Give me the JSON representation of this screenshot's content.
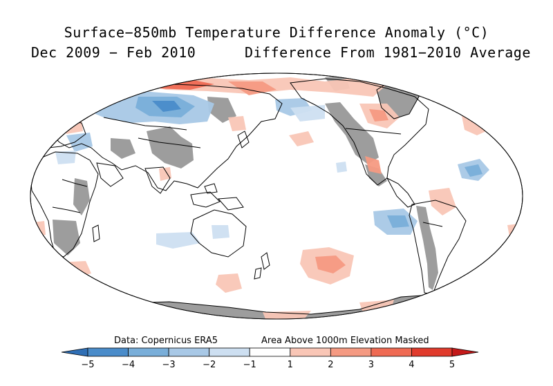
{
  "title": "Surface−850mb Temperature Difference Anomaly (°C)",
  "period": "Dec 2009 − Feb 2010",
  "reference": "Difference From 1981−2010 Average",
  "credit_data": "Data: Copernicus ERA5",
  "credit_mask": "Area Above 1000m Elevation Masked",
  "colorbar": {
    "ticks": [
      "−5",
      "−4",
      "−3",
      "−2",
      "−1",
      "1",
      "2",
      "3",
      "4",
      "5"
    ],
    "colors": [
      "#2f6fb5",
      "#4a8cca",
      "#79aed9",
      "#a8c8e6",
      "#cddff1",
      "#ffffff",
      "#f9c6b6",
      "#f59a82",
      "#ef6a53",
      "#e03a2c",
      "#c41a1a"
    ]
  },
  "colors": {
    "land_masked": "#9d9d9d",
    "ocean": "#ffffff",
    "coast": "#000000"
  }
}
